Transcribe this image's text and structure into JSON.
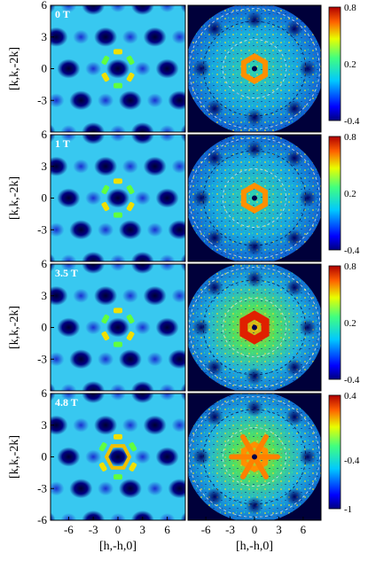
{
  "figure": {
    "x_axis_label": "[h,-h,0]",
    "y_axis_label": "[k,k,-2k]"
  },
  "chart_data": [
    {
      "type": "heatmap",
      "field": "0 T",
      "xlim": [
        -8.2,
        8.2
      ],
      "ylim": [
        -6,
        6
      ],
      "x_ticks": [
        "-6",
        "-3",
        "0",
        "3",
        "6"
      ],
      "y_ticks": [
        "6",
        "3",
        "0",
        "-3"
      ],
      "colorbar": {
        "ticks": [
          "0.8",
          "0.2",
          "-0.4"
        ],
        "range": [
          -0.4,
          0.8
        ]
      },
      "calculated_pattern": "honeycomb",
      "measured_pattern": "hexagonal ring"
    },
    {
      "type": "heatmap",
      "field": "1 T",
      "xlim": [
        -8.2,
        8.2
      ],
      "ylim": [
        -6,
        6
      ],
      "x_ticks": [
        "-6",
        "-3",
        "0",
        "3",
        "6"
      ],
      "y_ticks": [
        "6",
        "3",
        "0",
        "-3"
      ],
      "colorbar": {
        "ticks": [
          "0.8",
          "0.2",
          "-0.4"
        ],
        "range": [
          -0.4,
          0.8
        ]
      },
      "calculated_pattern": "honeycomb",
      "measured_pattern": "hexagonal ring"
    },
    {
      "type": "heatmap",
      "field": "3.5 T",
      "xlim": [
        -8.2,
        8.2
      ],
      "ylim": [
        -6,
        6
      ],
      "x_ticks": [
        "-6",
        "-3",
        "0",
        "3",
        "6"
      ],
      "y_ticks": [
        "6",
        "3",
        "0",
        "-3"
      ],
      "colorbar": {
        "ticks": [
          "0.8",
          "0.2",
          "-0.4"
        ],
        "range": [
          -0.4,
          0.8
        ]
      },
      "calculated_pattern": "honeycomb",
      "measured_pattern": "bright hexagonal ring"
    },
    {
      "type": "heatmap",
      "field": "4.8 T",
      "xlim": [
        -8.2,
        8.2
      ],
      "ylim": [
        -6,
        6
      ],
      "x_ticks": [
        "-6",
        "-3",
        "0",
        "3",
        "6"
      ],
      "y_ticks": [
        "6",
        "3",
        "0",
        "-3",
        "-6"
      ],
      "colorbar": {
        "ticks": [
          "0.4",
          "-0.4",
          "-1"
        ],
        "range": [
          -1,
          0.4
        ]
      },
      "calculated_pattern": "hexagonal rings",
      "measured_pattern": "six-fold star"
    }
  ]
}
